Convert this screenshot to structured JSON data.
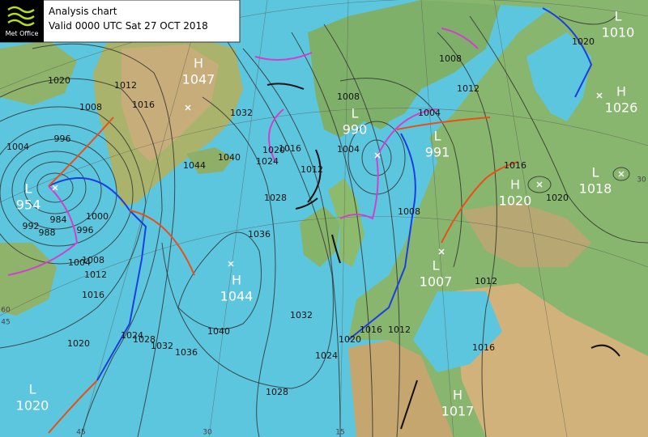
{
  "header": {
    "logo": "Met Office",
    "title": "Analysis chart",
    "valid": "Valid 0000 UTC Sat 27 OCT 2018"
  },
  "pressure_centers": [
    {
      "type": "L",
      "value": "954"
    },
    {
      "type": "H",
      "value": "1047"
    },
    {
      "type": "L",
      "value": "990"
    },
    {
      "type": "L",
      "value": "991"
    },
    {
      "type": "H",
      "value": "1020"
    },
    {
      "type": "L",
      "value": "1018"
    },
    {
      "type": "H",
      "value": "1026"
    },
    {
      "type": "L",
      "value": "1010"
    },
    {
      "type": "H",
      "value": "1044"
    },
    {
      "type": "L",
      "value": "1007"
    },
    {
      "type": "H",
      "value": "1017"
    },
    {
      "type": "L",
      "value": "1020"
    }
  ],
  "isobar_labels": [
    "1020",
    "1008",
    "1012",
    "1016",
    "1004",
    "996",
    "984",
    "988",
    "992",
    "1000",
    "996",
    "1004",
    "1008",
    "1012",
    "1016",
    "1020",
    "1024",
    "1028",
    "1032",
    "1036",
    "1040",
    "1044",
    "1040",
    "1032",
    "1024",
    "1020",
    "1016",
    "1012",
    "1028",
    "1036",
    "1032",
    "1028",
    "1024",
    "1020",
    "1016",
    "1012",
    "1008",
    "1004",
    "1008",
    "1012",
    "1016",
    "1020",
    "1020",
    "1012",
    "1016",
    "1004",
    "1008"
  ],
  "graticule_labels": [
    "60",
    "45",
    "45",
    "30",
    "15",
    "30"
  ]
}
